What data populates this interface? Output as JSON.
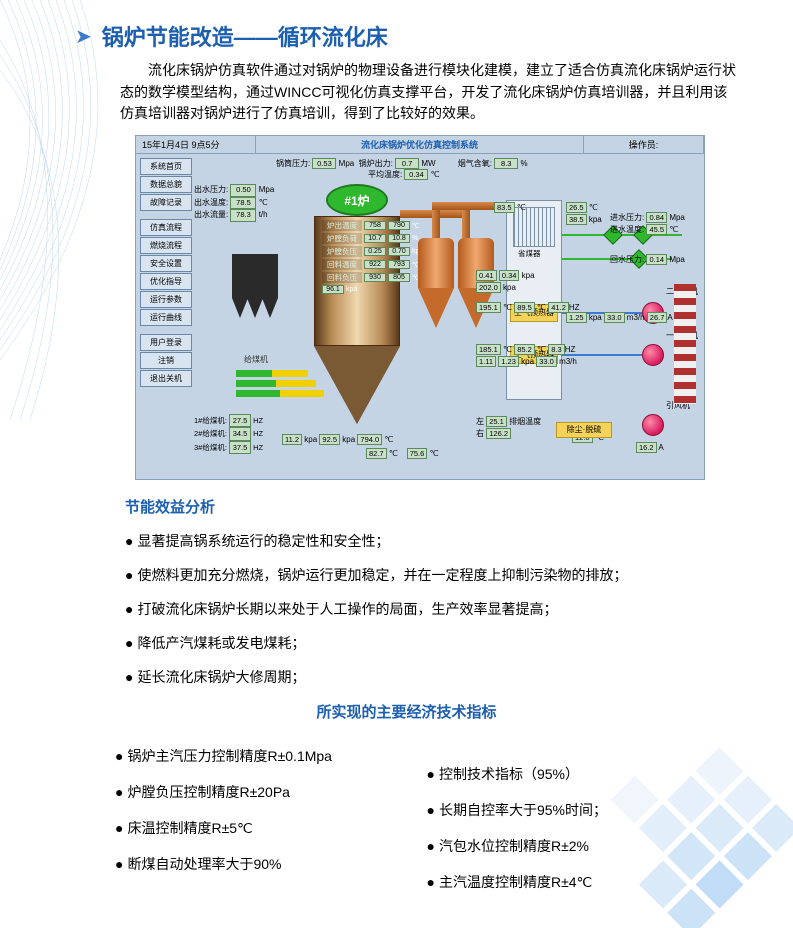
{
  "title": "锅炉节能改造——循环流化床",
  "intro": "流化床锅炉仿真软件通过对锅炉的物理设备进行模块化建模，建立了适合仿真流化床锅炉运行状态的数学模型结构，通过WINCC可视化仿真支撑平台，开发了流化床锅炉仿真培训器，并且利用该仿真培训器对锅炉进行了仿真培训，得到了比较好的效果。",
  "shot": {
    "date": "15年1月4日 9点5分",
    "sysTitle": "流化床锅炉优化仿真控制系统",
    "operator": "操作员:",
    "sidebarGroups": [
      [
        "系统首页",
        "数据总貌",
        "故障记录"
      ],
      [
        "仿真流程",
        "燃烧流程",
        "安全设置",
        "优化指导",
        "运行参数",
        "运行曲线"
      ],
      [
        "用户登录",
        "注销",
        "退出关机"
      ]
    ],
    "readouts": {
      "outPressure": {
        "label": "出水压力:",
        "v": "0.50",
        "u": "Mpa"
      },
      "outTemp": {
        "label": "出水温度:",
        "v": "78.5",
        "u": "℃"
      },
      "outFlow": {
        "label": "出水流量:",
        "v": "78.3",
        "u": "t/h"
      }
    },
    "toprow": [
      {
        "label": "锅筒压力:",
        "v": "0.53",
        "u": "Mpa"
      },
      {
        "label": "锅炉出力:",
        "v": "0.7",
        "u": "MW"
      },
      {
        "label": "平均温度:",
        "v": "0.34",
        "u": "℃"
      },
      {
        "label": "烟气含氧:",
        "v": "8.3",
        "u": "%"
      }
    ],
    "furnace": "#1炉",
    "vesselLabels": [
      {
        "name": "炉出温度",
        "a": "758",
        "b": "790",
        "u": "℃"
      },
      {
        "name": "炉膛负荷",
        "a": "10.7",
        "b": "10.8",
        "u": "%"
      },
      {
        "name": "炉膛负压",
        "a": "0.25",
        "b": "0.70",
        "u": "kpa"
      },
      {
        "name": "回料温度",
        "a": "922",
        "b": "793",
        "u": "℃"
      },
      {
        "name": "回料负压",
        "a": "930",
        "b": "805",
        "u": "℃"
      },
      {
        "name": "",
        "a": "96.1",
        "b": "",
        "u": "kpa"
      }
    ],
    "preheaters": [
      "空气预热器",
      "空气预热器"
    ],
    "right": {
      "inPressure": {
        "label": "进水压力:",
        "v": "0.84",
        "u": "Mpa"
      },
      "inTemp": {
        "label": "进水温度:",
        "v": "45.5",
        "u": "℃"
      },
      "backPressure": {
        "label": "回水压力:",
        "v": "0.14",
        "u": "Mpa"
      },
      "fan2": {
        "label": "二次风机"
      },
      "fan1": {
        "label": "一次风机"
      },
      "fanOut": {
        "label": "引风机"
      },
      "saveCoal": {
        "label": "省煤器"
      }
    },
    "duster": "除尘·脱硫",
    "feeders": {
      "label": "给煤机",
      "rows": [
        {
          "n": "1#给煤机:",
          "v": "27.5",
          "u": "HZ"
        },
        {
          "n": "2#给煤机:",
          "v": "34.5",
          "u": "HZ"
        },
        {
          "n": "3#给煤机:",
          "v": "37.5",
          "u": "HZ"
        }
      ]
    },
    "misc": {
      "v826": "826.5",
      "v835": "83.5",
      "v385": "38.5",
      "v265": "26.5",
      "v041": "0.41",
      "v034": "0.34",
      "v202": "202.0",
      "v195": "195.1",
      "v895": "89.5",
      "v412": "41.2",
      "v111": "1.11",
      "v125": "1.25",
      "v330": "33.0",
      "v83": "8.3",
      "v1851": "185.1",
      "v852": "85.2",
      "v267": "26.7",
      "v123": "1.23",
      "v330b": "33.0",
      "v120": "12.0",
      "v162": "16.2",
      "v251": "25.1",
      "v262": "126.2",
      "exhLabel": "排烟温度",
      "leftLabel": "左",
      "rightLabel": "右",
      "airLabel": "风量"
    },
    "bottomVals": [
      {
        "label": "kpa",
        "v": "11.2"
      },
      {
        "label": "kpa",
        "v": "92.5"
      },
      {
        "label": "℃",
        "v": "794.0"
      },
      {
        "label": "℃",
        "v": "82.7"
      },
      {
        "label": "℃",
        "v": "75.6"
      }
    ]
  },
  "analysisTitle": "节能效益分析",
  "bullets": [
    "显著提高锅系统运行的稳定性和安全性；",
    "使燃料更加充分燃烧，锅炉运行更加稳定，并在一定程度上抑制污染物的排放；",
    "打破流化床锅炉长期以来处于人工操作的局面，生产效率显著提高；",
    "降低产汽煤耗或发电煤耗；",
    "延长流化床锅炉大修周期；"
  ],
  "centerTitle": "所实现的主要经济技术指标",
  "leftCol": [
    "锅炉主汽压力控制精度R±0.1Mpa",
    "炉膛负压控制精度R±20Pa",
    "床温控制精度R±5℃",
    "断煤自动处理率大于90%"
  ],
  "rightCol": [
    "控制技术指标（95%）",
    "长期自控率大于95%时间；",
    "汽包水位控制精度R±2%",
    "主汽温度控制精度R±4℃"
  ],
  "colors": {
    "titleBlue": "#1c5fb0",
    "green": "#2eb82e",
    "yellow": "#f5d25a",
    "pink": "#d81b60",
    "panel": "#c4d4e4"
  }
}
